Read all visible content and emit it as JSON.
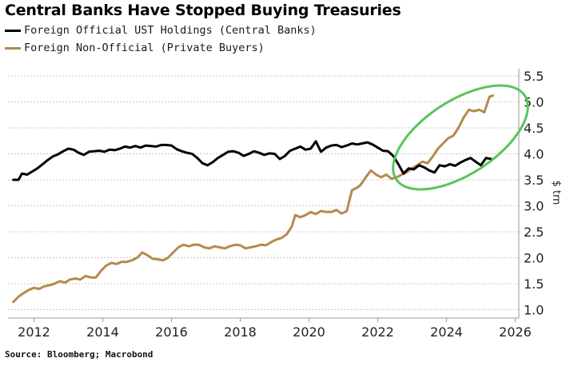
{
  "chart_data": {
    "type": "line",
    "title": "Central Banks Have Stopped Buying Treasuries",
    "xlabel": "",
    "ylabel": "$ trn",
    "source": "Source: Bloomberg; Macrobond",
    "xlim": [
      2011.2,
      2026.1
    ],
    "ylim": [
      1.0,
      5.5
    ],
    "x_ticks": [
      2012,
      2014,
      2016,
      2018,
      2020,
      2022,
      2024,
      2026
    ],
    "x_tick_labels": [
      "2012",
      "2014",
      "2016",
      "2018",
      "2020",
      "2022",
      "2024",
      "2026"
    ],
    "y_ticks": [
      1.0,
      1.5,
      2.0,
      2.5,
      3.0,
      3.5,
      4.0,
      4.5,
      5.0,
      5.5
    ],
    "y_tick_labels": [
      "1.0",
      "1.5",
      "2.0",
      "2.5",
      "3.0",
      "3.5",
      "4.0",
      "4.5",
      "5.0",
      "5.5"
    ],
    "y_axis_side": "right",
    "grid": true,
    "legend_position": "top-left",
    "series": [
      {
        "name": "Foreign Official UST Holdings (Central Banks)",
        "color": "#000000",
        "x": [
          2011.4,
          2011.55,
          2011.65,
          2011.8,
          2011.95,
          2012.1,
          2012.25,
          2012.4,
          2012.55,
          2012.7,
          2012.85,
          2013.0,
          2013.15,
          2013.3,
          2013.45,
          2013.6,
          2013.75,
          2013.9,
          2014.05,
          2014.2,
          2014.35,
          2014.5,
          2014.65,
          2014.8,
          2014.95,
          2015.1,
          2015.25,
          2015.4,
          2015.55,
          2015.7,
          2015.85,
          2016.0,
          2016.15,
          2016.3,
          2016.45,
          2016.6,
          2016.75,
          2016.9,
          2017.05,
          2017.2,
          2017.35,
          2017.5,
          2017.65,
          2017.8,
          2017.95,
          2018.1,
          2018.25,
          2018.4,
          2018.55,
          2018.7,
          2018.85,
          2019.0,
          2019.15,
          2019.3,
          2019.45,
          2019.6,
          2019.75,
          2019.9,
          2020.05,
          2020.2,
          2020.35,
          2020.5,
          2020.65,
          2020.8,
          2020.95,
          2021.1,
          2021.25,
          2021.4,
          2021.55,
          2021.7,
          2021.85,
          2022.0,
          2022.15,
          2022.3,
          2022.45,
          2022.6,
          2022.75,
          2022.9,
          2023.05,
          2023.2,
          2023.35,
          2023.5,
          2023.65,
          2023.8,
          2023.95,
          2024.1,
          2024.25,
          2024.4,
          2024.55,
          2024.7,
          2024.85,
          2025.0,
          2025.15,
          2025.3
        ],
        "values": [
          3.5,
          3.5,
          3.62,
          3.6,
          3.66,
          3.72,
          3.8,
          3.88,
          3.95,
          3.99,
          4.05,
          4.1,
          4.08,
          4.02,
          3.98,
          4.04,
          4.05,
          4.06,
          4.04,
          4.08,
          4.07,
          4.1,
          4.14,
          4.12,
          4.15,
          4.12,
          4.16,
          4.15,
          4.14,
          4.17,
          4.17,
          4.16,
          4.09,
          4.05,
          4.02,
          4.0,
          3.92,
          3.82,
          3.78,
          3.84,
          3.92,
          3.98,
          4.04,
          4.05,
          4.02,
          3.96,
          4.0,
          4.05,
          4.02,
          3.98,
          4.01,
          4.0,
          3.9,
          3.96,
          4.06,
          4.1,
          4.14,
          4.08,
          4.1,
          4.24,
          4.04,
          4.12,
          4.16,
          4.17,
          4.13,
          4.16,
          4.2,
          4.18,
          4.2,
          4.22,
          4.18,
          4.12,
          4.06,
          4.05,
          3.96,
          3.8,
          3.62,
          3.72,
          3.7,
          3.78,
          3.74,
          3.68,
          3.64,
          3.78,
          3.76,
          3.8,
          3.77,
          3.83,
          3.88,
          3.92,
          3.85,
          3.78,
          3.92,
          3.9
        ]
      },
      {
        "name": "Foreign Non-Official (Private Buyers)",
        "color": "#B48A4E",
        "x": [
          2011.4,
          2011.55,
          2011.7,
          2011.85,
          2012.0,
          2012.15,
          2012.3,
          2012.45,
          2012.6,
          2012.75,
          2012.9,
          2013.05,
          2013.2,
          2013.35,
          2013.5,
          2013.65,
          2013.8,
          2013.95,
          2014.1,
          2014.25,
          2014.4,
          2014.55,
          2014.7,
          2014.85,
          2015.0,
          2015.15,
          2015.3,
          2015.45,
          2015.6,
          2015.75,
          2015.9,
          2016.05,
          2016.2,
          2016.35,
          2016.5,
          2016.65,
          2016.8,
          2016.95,
          2017.1,
          2017.25,
          2017.4,
          2017.55,
          2017.7,
          2017.85,
          2018.0,
          2018.15,
          2018.3,
          2018.45,
          2018.6,
          2018.75,
          2018.9,
          2019.05,
          2019.2,
          2019.35,
          2019.5,
          2019.6,
          2019.75,
          2019.9,
          2020.05,
          2020.2,
          2020.35,
          2020.5,
          2020.65,
          2020.8,
          2020.95,
          2021.1,
          2021.25,
          2021.4,
          2021.5,
          2021.65,
          2021.8,
          2021.95,
          2022.1,
          2022.25,
          2022.4,
          2022.55,
          2022.7,
          2022.85,
          2023.0,
          2023.15,
          2023.3,
          2023.45,
          2023.6,
          2023.75,
          2023.9,
          2024.05,
          2024.2,
          2024.35,
          2024.5,
          2024.65,
          2024.8,
          2024.95,
          2025.1,
          2025.25,
          2025.35
        ],
        "values": [
          1.15,
          1.25,
          1.32,
          1.38,
          1.42,
          1.4,
          1.45,
          1.47,
          1.5,
          1.55,
          1.52,
          1.58,
          1.6,
          1.58,
          1.65,
          1.62,
          1.62,
          1.75,
          1.85,
          1.9,
          1.88,
          1.92,
          1.92,
          1.95,
          2.0,
          2.1,
          2.05,
          1.98,
          1.97,
          1.95,
          2.0,
          2.1,
          2.2,
          2.25,
          2.22,
          2.25,
          2.25,
          2.2,
          2.18,
          2.22,
          2.2,
          2.18,
          2.22,
          2.25,
          2.24,
          2.18,
          2.2,
          2.22,
          2.25,
          2.24,
          2.3,
          2.35,
          2.38,
          2.45,
          2.6,
          2.82,
          2.78,
          2.82,
          2.88,
          2.84,
          2.9,
          2.88,
          2.88,
          2.92,
          2.85,
          2.9,
          3.3,
          3.35,
          3.4,
          3.55,
          3.68,
          3.6,
          3.55,
          3.6,
          3.52,
          3.55,
          3.6,
          3.65,
          3.72,
          3.78,
          3.85,
          3.82,
          3.95,
          4.1,
          4.2,
          4.3,
          4.35,
          4.5,
          4.7,
          4.85,
          4.82,
          4.85,
          4.8,
          5.1,
          5.12
        ]
      }
    ],
    "annotations": [
      {
        "type": "ellipse",
        "color": "#5BC45B",
        "description": "highlight of divergence 2022-2025"
      }
    ]
  }
}
